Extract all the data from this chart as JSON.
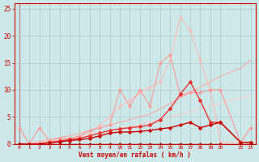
{
  "background_color": "#cce8e8",
  "grid_color": "#aacccc",
  "xlabel": "Vent moyen/en rafales ( km/h )",
  "xlim": [
    -0.5,
    23.5
  ],
  "ylim": [
    0,
    26
  ],
  "yticks": [
    0,
    5,
    10,
    15,
    20,
    25
  ],
  "xtick_positions": [
    0,
    1,
    2,
    3,
    4,
    5,
    6,
    7,
    8,
    9,
    10,
    11,
    12,
    13,
    14,
    15,
    16,
    17,
    18,
    19,
    20,
    22,
    23
  ],
  "xtick_labels": [
    "0",
    "1",
    "2",
    "3",
    "4",
    "5",
    "6",
    "7",
    "8",
    "9",
    "10",
    "11",
    "12",
    "13",
    "14",
    "15",
    "16",
    "17",
    "18",
    "19",
    "20",
    "22",
    "23"
  ],
  "lines": [
    {
      "x": [
        0,
        1,
        2,
        3,
        4,
        5,
        6,
        7,
        8,
        9,
        10,
        11,
        12,
        13,
        14,
        15,
        16,
        17,
        18,
        19,
        20,
        22,
        23
      ],
      "y": [
        0.0,
        0.0,
        0.3,
        0.5,
        0.7,
        1.0,
        1.3,
        1.6,
        2.0,
        2.4,
        2.8,
        3.2,
        3.6,
        4.0,
        4.5,
        5.0,
        5.5,
        6.0,
        6.5,
        7.0,
        7.5,
        8.5,
        9.0
      ],
      "color": "#ffcccc",
      "lw": 0.8,
      "marker": null,
      "ms": 0,
      "zorder": 1
    },
    {
      "x": [
        0,
        1,
        2,
        3,
        4,
        5,
        6,
        7,
        8,
        9,
        10,
        11,
        12,
        13,
        14,
        15,
        16,
        17,
        18,
        19,
        20,
        22,
        23
      ],
      "y": [
        0.0,
        0.0,
        0.5,
        0.8,
        1.2,
        1.5,
        2.0,
        2.5,
        3.0,
        3.5,
        4.0,
        4.5,
        5.0,
        5.5,
        6.5,
        7.5,
        8.5,
        9.5,
        10.5,
        11.5,
        12.5,
        14.0,
        15.5
      ],
      "color": "#ffaaaa",
      "lw": 0.8,
      "marker": null,
      "ms": 0,
      "zorder": 2
    },
    {
      "x": [
        0,
        1,
        2,
        3,
        4,
        5,
        6,
        7,
        8,
        9,
        10,
        11,
        12,
        13,
        14,
        15,
        16,
        17,
        18,
        19,
        20,
        22,
        23
      ],
      "y": [
        3.0,
        0.0,
        3.0,
        0.5,
        1.0,
        1.0,
        1.5,
        2.5,
        3.0,
        3.5,
        10.0,
        7.0,
        10.0,
        7.0,
        15.0,
        16.5,
        9.0,
        9.5,
        9.5,
        10.0,
        10.0,
        0.3,
        3.0
      ],
      "color": "#ff9999",
      "lw": 0.8,
      "marker": "D",
      "ms": 1.5,
      "zorder": 3
    },
    {
      "x": [
        0,
        1,
        2,
        3,
        4,
        5,
        6,
        7,
        8,
        9,
        10,
        11,
        12,
        13,
        14,
        15,
        16,
        17,
        18,
        19,
        20,
        22,
        23
      ],
      "y": [
        0.0,
        0.0,
        0.0,
        0.0,
        0.5,
        1.0,
        1.5,
        2.0,
        3.5,
        5.0,
        7.0,
        8.0,
        9.5,
        10.5,
        11.5,
        15.5,
        23.5,
        21.0,
        15.5,
        10.0,
        0.3,
        0.3,
        3.0
      ],
      "color": "#ffbbbb",
      "lw": 0.8,
      "marker": "D",
      "ms": 1.5,
      "zorder": 2
    },
    {
      "x": [
        0,
        1,
        2,
        3,
        4,
        5,
        6,
        7,
        8,
        9,
        10,
        11,
        12,
        13,
        14,
        15,
        16,
        17,
        18,
        19,
        20,
        22,
        23
      ],
      "y": [
        0.0,
        0.0,
        0.0,
        0.3,
        0.5,
        0.8,
        1.0,
        1.5,
        2.0,
        2.5,
        2.8,
        3.0,
        3.2,
        3.5,
        4.5,
        6.5,
        9.2,
        11.5,
        8.0,
        4.0,
        4.0,
        0.3,
        0.3
      ],
      "color": "#ee3333",
      "lw": 1.0,
      "marker": "D",
      "ms": 2.0,
      "zorder": 6
    },
    {
      "x": [
        0,
        1,
        2,
        3,
        4,
        5,
        6,
        7,
        8,
        9,
        10,
        11,
        12,
        13,
        14,
        15,
        16,
        17,
        18,
        19,
        20,
        22,
        23
      ],
      "y": [
        0.0,
        0.0,
        0.0,
        0.2,
        0.4,
        0.6,
        0.8,
        1.0,
        1.5,
        2.0,
        2.2,
        2.2,
        2.3,
        2.5,
        2.8,
        3.0,
        3.5,
        4.0,
        3.0,
        3.5,
        4.0,
        0.3,
        0.3
      ],
      "color": "#cc0000",
      "lw": 1.0,
      "marker": "D",
      "ms": 1.8,
      "zorder": 7
    },
    {
      "x": [
        0,
        1,
        2,
        3,
        4,
        5,
        6,
        7,
        8,
        9,
        10,
        11,
        12,
        13,
        14,
        15,
        16,
        17,
        18,
        19,
        20,
        22,
        23
      ],
      "y": [
        0.0,
        0.0,
        0.0,
        0.0,
        0.0,
        0.0,
        0.0,
        0.0,
        0.0,
        0.0,
        0.0,
        0.0,
        0.0,
        0.0,
        0.0,
        0.0,
        0.0,
        0.0,
        0.0,
        0.0,
        0.0,
        0.0,
        0.0
      ],
      "color": "#aa0000",
      "lw": 0.8,
      "marker": "D",
      "ms": 1.5,
      "zorder": 8
    }
  ]
}
